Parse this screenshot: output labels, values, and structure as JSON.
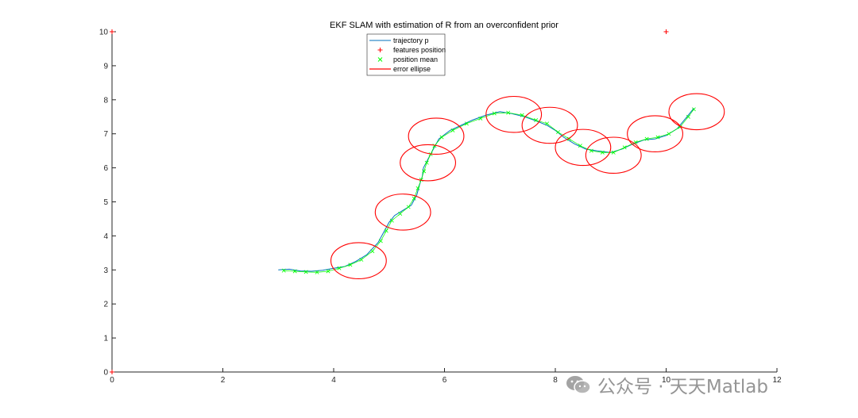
{
  "chart_data": {
    "type": "scatter",
    "title": "EKF SLAM with estimation of R from an overconfident prior",
    "xlabel": "",
    "ylabel": "",
    "xlim": [
      0,
      12
    ],
    "ylim": [
      0,
      10
    ],
    "x_ticks": [
      "0",
      "2",
      "4",
      "6",
      "8",
      "10",
      "12"
    ],
    "y_ticks": [
      "0",
      "1",
      "2",
      "3",
      "4",
      "5",
      "6",
      "7",
      "8",
      "9",
      "10"
    ],
    "grid": false,
    "legend_placement": "top-center",
    "series": [
      {
        "name": "trajectory p",
        "kind": "line",
        "color": "#0072BD",
        "points": [
          [
            3.0,
            3.0
          ],
          [
            3.2,
            3.02
          ],
          [
            3.4,
            2.97
          ],
          [
            3.6,
            2.96
          ],
          [
            3.8,
            2.99
          ],
          [
            4.0,
            3.05
          ],
          [
            4.2,
            3.1
          ],
          [
            4.4,
            3.25
          ],
          [
            4.6,
            3.45
          ],
          [
            4.8,
            3.8
          ],
          [
            4.9,
            4.1
          ],
          [
            5.0,
            4.4
          ],
          [
            5.1,
            4.6
          ],
          [
            5.25,
            4.75
          ],
          [
            5.4,
            4.9
          ],
          [
            5.5,
            5.2
          ],
          [
            5.55,
            5.5
          ],
          [
            5.6,
            5.75
          ],
          [
            5.62,
            6.0
          ],
          [
            5.7,
            6.25
          ],
          [
            5.8,
            6.55
          ],
          [
            5.9,
            6.85
          ],
          [
            6.1,
            7.1
          ],
          [
            6.3,
            7.25
          ],
          [
            6.5,
            7.4
          ],
          [
            6.75,
            7.55
          ],
          [
            7.0,
            7.65
          ],
          [
            7.2,
            7.6
          ],
          [
            7.45,
            7.5
          ],
          [
            7.7,
            7.35
          ],
          [
            7.85,
            7.25
          ],
          [
            8.0,
            7.1
          ],
          [
            8.15,
            6.9
          ],
          [
            8.35,
            6.7
          ],
          [
            8.55,
            6.55
          ],
          [
            8.75,
            6.5
          ],
          [
            9.0,
            6.45
          ],
          [
            9.2,
            6.55
          ],
          [
            9.4,
            6.7
          ],
          [
            9.6,
            6.82
          ],
          [
            9.8,
            6.85
          ],
          [
            10.0,
            6.95
          ],
          [
            10.2,
            7.15
          ],
          [
            10.35,
            7.45
          ],
          [
            10.5,
            7.75
          ]
        ]
      },
      {
        "name": "features position",
        "kind": "marker",
        "marker": "+",
        "color": "#FF0000",
        "points": [
          [
            0,
            10
          ],
          [
            10,
            10
          ],
          [
            0,
            0
          ]
        ]
      },
      {
        "name": "position mean",
        "kind": "marker",
        "marker": "x",
        "color": "#00FF00",
        "points": [
          [
            3.1,
            2.98
          ],
          [
            3.3,
            2.96
          ],
          [
            3.5,
            2.94
          ],
          [
            3.7,
            2.93
          ],
          [
            3.9,
            2.96
          ],
          [
            4.1,
            3.05
          ],
          [
            4.3,
            3.15
          ],
          [
            4.5,
            3.3
          ],
          [
            4.7,
            3.55
          ],
          [
            4.85,
            3.85
          ],
          [
            4.95,
            4.15
          ],
          [
            5.05,
            4.45
          ],
          [
            5.2,
            4.65
          ],
          [
            5.35,
            4.85
          ],
          [
            5.45,
            5.1
          ],
          [
            5.52,
            5.4
          ],
          [
            5.58,
            5.65
          ],
          [
            5.63,
            5.9
          ],
          [
            5.68,
            6.15
          ],
          [
            5.75,
            6.4
          ],
          [
            5.82,
            6.65
          ],
          [
            5.95,
            6.9
          ],
          [
            6.15,
            7.1
          ],
          [
            6.4,
            7.3
          ],
          [
            6.65,
            7.45
          ],
          [
            6.9,
            7.6
          ],
          [
            7.15,
            7.62
          ],
          [
            7.4,
            7.55
          ],
          [
            7.65,
            7.4
          ],
          [
            7.85,
            7.3
          ],
          [
            8.05,
            7.05
          ],
          [
            8.25,
            6.85
          ],
          [
            8.45,
            6.65
          ],
          [
            8.65,
            6.5
          ],
          [
            8.85,
            6.45
          ],
          [
            9.05,
            6.45
          ],
          [
            9.25,
            6.6
          ],
          [
            9.45,
            6.75
          ],
          [
            9.65,
            6.85
          ],
          [
            9.85,
            6.9
          ],
          [
            10.05,
            7.0
          ],
          [
            10.25,
            7.2
          ],
          [
            10.4,
            7.5
          ],
          [
            10.5,
            7.72
          ]
        ]
      },
      {
        "name": "error ellipse",
        "kind": "ellipse",
        "color": "#FF0000",
        "ellipses": [
          {
            "cx": 4.45,
            "cy": 3.27,
            "rx": 0.5,
            "ry": 0.53
          },
          {
            "cx": 5.25,
            "cy": 4.7,
            "rx": 0.5,
            "ry": 0.53
          },
          {
            "cx": 5.7,
            "cy": 6.15,
            "rx": 0.5,
            "ry": 0.53
          },
          {
            "cx": 5.85,
            "cy": 6.93,
            "rx": 0.5,
            "ry": 0.53
          },
          {
            "cx": 7.25,
            "cy": 7.57,
            "rx": 0.5,
            "ry": 0.53
          },
          {
            "cx": 7.9,
            "cy": 7.25,
            "rx": 0.5,
            "ry": 0.53
          },
          {
            "cx": 8.5,
            "cy": 6.6,
            "rx": 0.5,
            "ry": 0.53
          },
          {
            "cx": 9.05,
            "cy": 6.37,
            "rx": 0.5,
            "ry": 0.53
          },
          {
            "cx": 9.8,
            "cy": 7.0,
            "rx": 0.5,
            "ry": 0.53
          },
          {
            "cx": 10.55,
            "cy": 7.65,
            "rx": 0.5,
            "ry": 0.53
          }
        ]
      }
    ]
  },
  "watermark": {
    "text": "公众号 · 天天Matlab",
    "icon": "wechat-icon"
  }
}
